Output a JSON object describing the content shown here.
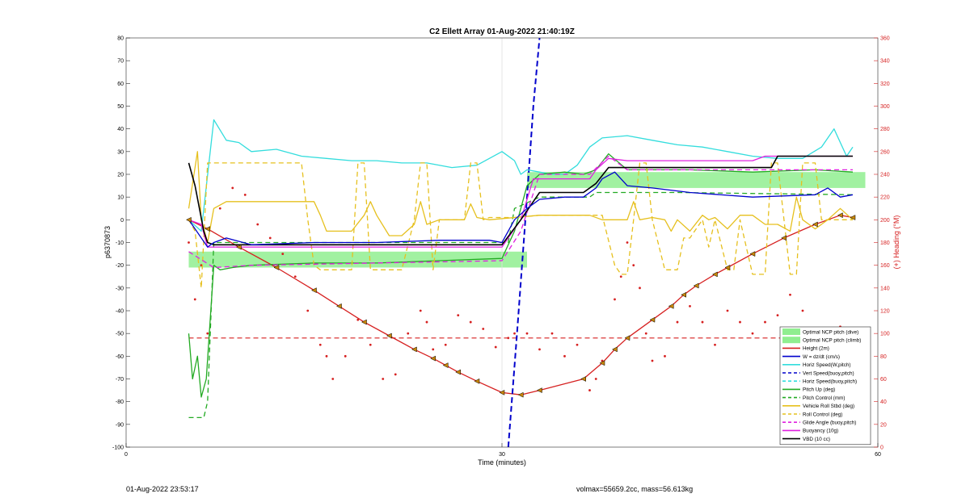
{
  "chart_data": {
    "type": "line",
    "title": "C2 Ellett Array 01-Aug-2022 21:40:19Z",
    "xlabel": "Time (minutes)",
    "ylabel_left": "p6370873",
    "ylabel_right": "(+) Heading (°M)",
    "xlim": [
      0,
      60
    ],
    "ylim_left": [
      -100,
      80
    ],
    "ylim_right": [
      0,
      360
    ],
    "xticks": [
      0,
      30,
      60
    ],
    "yticks_left": [
      -100,
      -90,
      -80,
      -70,
      -60,
      -50,
      -40,
      -30,
      -20,
      -10,
      0,
      10,
      20,
      30,
      40,
      50,
      60,
      70,
      80
    ],
    "yticks_right": [
      0,
      20,
      40,
      60,
      80,
      100,
      120,
      140,
      160,
      180,
      200,
      220,
      240,
      260,
      280,
      300,
      320,
      340,
      360
    ],
    "grid": "x-at-30",
    "legend_position": "lower-right",
    "colors": {
      "green_band": "#90ee90",
      "red": "#d62020",
      "blue": "#0000cc",
      "cyan": "#33dddd",
      "green": "#22aa22",
      "gold": "#e6c01e",
      "magenta": "#e020e0",
      "black": "#000000"
    },
    "legend": [
      {
        "label": "Optimal NCP pitch (dive)",
        "style": "patch",
        "color": "#90ee90"
      },
      {
        "label": "Optimal NCP pitch (climb)",
        "style": "patch",
        "color": "#90ee90"
      },
      {
        "label": "Height (2m)",
        "style": "solid",
        "color": "#d62020"
      },
      {
        "label": "W = dz/dt (cm/s)",
        "style": "solid",
        "color": "#0000cc"
      },
      {
        "label": "Horiz Speed(W,pitch)",
        "style": "solid",
        "color": "#33dddd"
      },
      {
        "label": "Vert Speed(buoy,pitch)",
        "style": "dashed",
        "color": "#0000cc"
      },
      {
        "label": "Horiz Speed(buoy,pitch)",
        "style": "dashed",
        "color": "#33dddd"
      },
      {
        "label": "Pitch Up (deg)",
        "style": "solid",
        "color": "#22aa22"
      },
      {
        "label": "Pitch Control (mm)",
        "style": "dashed",
        "color": "#22aa22"
      },
      {
        "label": "Vehicle Roll Stbd (deg)",
        "style": "solid",
        "color": "#e6c01e"
      },
      {
        "label": "Roll Control (deg)",
        "style": "dashed",
        "color": "#e6c01e"
      },
      {
        "label": "Glide Angle (buoy,pitch)",
        "style": "dashed",
        "color": "#e020e0"
      },
      {
        "label": "Buoyancy (10g)",
        "style": "solid",
        "color": "#e020e0"
      },
      {
        "label": "VBD (10 cc)",
        "style": "solid",
        "color": "#000000"
      }
    ],
    "bands": [
      {
        "name": "Optimal NCP pitch (dive)",
        "x": [
          5,
          32
        ],
        "y": [
          -21,
          -14
        ]
      },
      {
        "name": "Optimal NCP pitch (climb)",
        "x": [
          32,
          59
        ],
        "y": [
          14,
          21
        ]
      }
    ],
    "heading_ref_right": 96,
    "series": [
      {
        "name": "Height (2m)",
        "axis": "left",
        "color": "#d62020",
        "style": "solid",
        "markers": true,
        "x": [
          5.0,
          6.5,
          9.0,
          12.0,
          15.0,
          17.0,
          19.0,
          21.0,
          23.0,
          24.5,
          25.5,
          26.5,
          28.0,
          30.0,
          31.5,
          33.0,
          36.5,
          38.0,
          39.0,
          40.0,
          42.0,
          43.5,
          44.5,
          45.5,
          47.0,
          48.0,
          50.0,
          52.5,
          55.0,
          57.0,
          58.0
        ],
        "y": [
          0.0,
          -4.0,
          -12.0,
          -21.0,
          -31.0,
          -38.0,
          -45.0,
          -51.0,
          -57.0,
          -61.0,
          -64.0,
          -67.0,
          -71.0,
          -76.0,
          -77.0,
          -75.0,
          -70.0,
          -63.0,
          -57.0,
          -52.0,
          -44.0,
          -38.0,
          -33.0,
          -29.0,
          -24.0,
          -21.0,
          -15.0,
          -8.0,
          -2.0,
          2.0,
          1.0
        ]
      },
      {
        "name": "Heading",
        "axis": "right",
        "color": "#d62020",
        "style": "dots",
        "x": [
          5.0,
          5.5,
          6.0,
          6.5,
          7.5,
          8.5,
          9.5,
          10.5,
          11.5,
          12.5,
          13.5,
          14.5,
          15.5,
          16.0,
          16.5,
          17.5,
          18.5,
          19.5,
          20.5,
          21.5,
          22.5,
          23.5,
          24.0,
          24.5,
          25.5,
          26.5,
          27.5,
          28.5,
          29.5,
          30.5,
          31.0,
          32.0,
          33.0,
          34.0,
          35.0,
          36.0,
          37.0,
          37.5,
          38.0,
          39.0,
          39.5,
          40.0,
          40.5,
          41.0,
          41.5,
          42.0,
          43.0,
          44.0,
          45.0,
          46.0,
          47.0,
          48.0,
          49.0,
          50.0,
          51.0,
          52.0,
          53.0,
          54.0,
          55.0,
          56.0,
          57.0,
          58.0
        ],
        "y": [
          180,
          130,
          160,
          100,
          210,
          228,
          222,
          196,
          184,
          170,
          150,
          120,
          90,
          80,
          60,
          80,
          112,
          90,
          60,
          64,
          100,
          120,
          110,
          86,
          90,
          116,
          110,
          104,
          88,
          96,
          100,
          100,
          86,
          100,
          80,
          90,
          50,
          60,
          76,
          130,
          150,
          180,
          160,
          140,
          100,
          76,
          80,
          110,
          124,
          110,
          90,
          120,
          110,
          100,
          110,
          116,
          134,
          120,
          100,
          90,
          106,
          100
        ]
      },
      {
        "name": "Vert Speed(buoy,pitch)",
        "axis": "left",
        "color": "#0000cc",
        "style": "dashed",
        "x": [
          30.5,
          31.2,
          32.0,
          32.5,
          33.0
        ],
        "y": [
          -100,
          -50,
          10,
          50,
          80
        ]
      },
      {
        "name": "Horiz Speed(W,pitch)",
        "axis": "left",
        "color": "#33dddd",
        "style": "solid",
        "x": [
          5.0,
          6.0,
          7.0,
          8.0,
          9.0,
          10.0,
          12.0,
          14.0,
          16.0,
          18.0,
          20.0,
          22.0,
          24.0,
          26.0,
          28.0,
          30.0,
          31.0,
          31.5,
          32.0,
          33.0,
          34.0,
          35.0,
          36.0,
          37.0,
          38.0,
          40.0,
          42.0,
          44.0,
          46.0,
          48.0,
          50.0,
          52.0,
          54.0,
          55.5,
          56.5,
          57.5,
          58.0
        ],
        "y": [
          0,
          -5,
          44,
          35,
          34,
          30,
          31,
          28,
          27,
          26,
          26,
          25,
          25,
          23,
          24,
          30,
          26,
          20,
          22,
          21,
          20,
          20,
          24,
          32,
          36,
          37,
          35,
          33,
          32,
          30,
          28,
          27,
          27,
          32,
          40,
          28,
          32
        ]
      },
      {
        "name": "Pitch Up (deg)",
        "axis": "left",
        "color": "#22aa22",
        "style": "solid",
        "x": [
          5.0,
          5.3,
          5.7,
          6.0,
          6.4,
          7.0,
          7.5,
          8.5,
          10.0,
          15.0,
          20.0,
          25.0,
          30.0,
          31.0,
          31.5,
          32.0,
          33.0,
          35.0,
          36.5,
          37.5,
          38.5,
          40.0,
          45.0,
          50.0,
          55.0,
          58.0
        ],
        "y": [
          -50,
          -70,
          -60,
          -78,
          -70,
          -20,
          -22,
          -21,
          -20,
          -19,
          -19,
          -18,
          -17,
          -5,
          5,
          15,
          20,
          21,
          20,
          22,
          29,
          22,
          22,
          21,
          22,
          21
        ]
      },
      {
        "name": "Pitch Control (mm)",
        "axis": "left",
        "color": "#22aa22",
        "style": "dashed",
        "x": [
          5.0,
          6.2,
          6.5,
          7.0,
          10.0,
          30.5,
          31.0,
          33.0,
          37.0,
          37.5,
          44.0,
          58.0
        ],
        "y": [
          -87,
          -87,
          -80,
          -10,
          -10,
          -10,
          5,
          10,
          10,
          12,
          12,
          11
        ]
      },
      {
        "name": "Vehicle Roll Stbd (deg)",
        "axis": "left",
        "color": "#e6c01e",
        "style": "solid",
        "x": [
          5.0,
          5.7,
          6.0,
          6.5,
          7.0,
          8.0,
          10.0,
          15.0,
          15.5,
          16.0,
          17.0,
          18.0,
          19.0,
          19.5,
          20.0,
          21.0,
          22.0,
          23.0,
          23.5,
          24.0,
          25.0,
          26.0,
          27.0,
          27.5,
          28.0,
          29.0,
          31.0,
          33.0,
          35.0,
          36.0,
          37.0,
          38.0,
          39.0,
          40.0,
          40.5,
          41.0,
          42.0,
          43.0,
          43.5,
          44.0,
          45.0,
          46.0,
          46.5,
          47.0,
          48.0,
          49.0,
          50.0,
          51.0,
          52.0,
          53.0,
          53.5,
          54.0,
          55.0,
          56.0,
          57.0,
          58.0
        ],
        "y": [
          5,
          30,
          0,
          -10,
          5,
          8,
          8,
          8,
          2,
          -5,
          -5,
          -5,
          2,
          8,
          2,
          -7,
          -7,
          -2,
          8,
          -2,
          0,
          0,
          0,
          7,
          1,
          0,
          1,
          2,
          2,
          2,
          2,
          0,
          0,
          0,
          8,
          0,
          1,
          0,
          -5,
          0,
          -5,
          2,
          0,
          1,
          -4,
          2,
          2,
          -2,
          -2,
          -5,
          10,
          0,
          -4,
          0,
          5,
          0
        ]
      },
      {
        "name": "Roll Control (deg)",
        "axis": "left",
        "color": "#e6c01e",
        "style": "dashed",
        "x": [
          5.0,
          5.5,
          6.0,
          6.5,
          7.0,
          14.0,
          14.5,
          15.0,
          15.5,
          16.0,
          17.0,
          18.0,
          18.5,
          19.0,
          19.5,
          20.0,
          20.5,
          21.0,
          22.0,
          23.0,
          23.5,
          24.0,
          24.5,
          25.0,
          27.0,
          27.5,
          28.0,
          28.5,
          29.0,
          31.0,
          33.0,
          37.0,
          38.0,
          39.0,
          39.5,
          40.0,
          40.5,
          41.0,
          41.5,
          42.0,
          43.0,
          44.0,
          44.5,
          45.0,
          46.0,
          46.5,
          47.0,
          48.0,
          48.5,
          49.0,
          50.0,
          51.0,
          51.5,
          52.0,
          53.0,
          53.5,
          54.0,
          55.0,
          55.5,
          56.0,
          57.0,
          58.0
        ],
        "y": [
          0,
          -5,
          -30,
          25,
          25,
          25,
          0,
          -20,
          -22,
          -22,
          -22,
          -22,
          25,
          25,
          -22,
          -22,
          -22,
          -22,
          -22,
          0,
          25,
          25,
          -22,
          0,
          0,
          25,
          25,
          0,
          1,
          1,
          2,
          2,
          2,
          -20,
          -24,
          -24,
          0,
          25,
          25,
          0,
          -22,
          -22,
          -8,
          -8,
          0,
          -12,
          0,
          -22,
          -22,
          0,
          -24,
          -24,
          25,
          25,
          -24,
          -24,
          25,
          25,
          0,
          0,
          0,
          0
        ]
      },
      {
        "name": "Glide Angle (buoy,pitch)",
        "axis": "left",
        "color": "#e020e0",
        "style": "dashed",
        "x": [
          5.0,
          7.0,
          10.0,
          30.0,
          31.5,
          33.0,
          37.0,
          38.5,
          40.0,
          58.0
        ],
        "y": [
          -14,
          -21,
          -20,
          -18,
          -5,
          20,
          20,
          28,
          22,
          22
        ]
      },
      {
        "name": "Buoyancy (10g)",
        "axis": "left",
        "color": "#e020e0",
        "style": "solid",
        "x": [
          5.0,
          6.0,
          6.5,
          7.0,
          10.0,
          30.0,
          31.5,
          32.5,
          37.0,
          37.5,
          38.5,
          40.0,
          41.0,
          50.0,
          51.0,
          58.0
        ],
        "y": [
          0,
          -2,
          -12,
          -12,
          -12,
          -12,
          0,
          18,
          18,
          22,
          27,
          26,
          26,
          26,
          28,
          28
        ]
      },
      {
        "name": "VBD (10 cc)",
        "axis": "left",
        "color": "#000000",
        "style": "solid",
        "x": [
          5.0,
          5.5,
          6.2,
          6.5,
          7.0,
          10.0,
          30.0,
          31.5,
          33.0,
          36.5,
          37.5,
          38.5,
          40.0,
          51.5,
          52.0,
          58.0
        ],
        "y": [
          25,
          15,
          -5,
          -10,
          -11,
          -11,
          -11,
          0,
          12,
          12,
          16,
          23,
          23,
          23,
          28,
          28
        ]
      },
      {
        "name": "W = dz/dt (cm/s)",
        "axis": "left",
        "color": "#0000cc",
        "style": "solid",
        "x": [
          5.0,
          6.5,
          7.0,
          8.0,
          10.0,
          15.0,
          20.0,
          25.0,
          29.0,
          30.0,
          31.0,
          32.0,
          33.0,
          35.0,
          36.5,
          37.5,
          38.0,
          39.0,
          40.0,
          42.0,
          45.0,
          50.0,
          55.0,
          56.0,
          57.0,
          58.0
        ],
        "y": [
          0,
          -12,
          -10,
          -8,
          -11,
          -10,
          -10,
          -9,
          -9,
          -10,
          0,
          5,
          9,
          10,
          10,
          14,
          18,
          21,
          15,
          14,
          12,
          10,
          11,
          14,
          10,
          11
        ]
      }
    ]
  },
  "footer": {
    "left": "01-Aug-2022 23:53:17",
    "right": "volmax=55659.2cc, mass=56.613kg"
  }
}
